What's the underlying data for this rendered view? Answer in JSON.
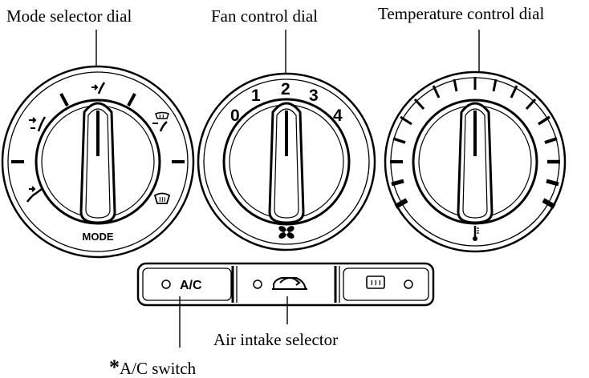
{
  "labels": {
    "mode_selector": "Mode selector dial",
    "fan_control": "Fan control dial",
    "temperature_control": "Temperature control dial",
    "air_intake": "Air intake selector",
    "ac_switch_asterisk": "*",
    "ac_switch": "A/C switch"
  },
  "mode_dial": {
    "caption": "MODE",
    "icons": [
      "vent-face-icon",
      "bilevel-icon",
      "floor-icon",
      "floor-defrost-icon",
      "defrost-icon"
    ]
  },
  "fan_dial": {
    "speeds": [
      "0",
      "1",
      "2",
      "3",
      "4"
    ],
    "icon": "fan-icon"
  },
  "temp_dial": {
    "icon": "thermometer-icon"
  },
  "button_panel": {
    "ac_label": "A/C",
    "recirc_icon": "recirculation-car-icon",
    "rear_defrost_icon": "rear-defroster-icon"
  },
  "colors": {
    "ink": "#000000",
    "background": "#ffffff"
  }
}
